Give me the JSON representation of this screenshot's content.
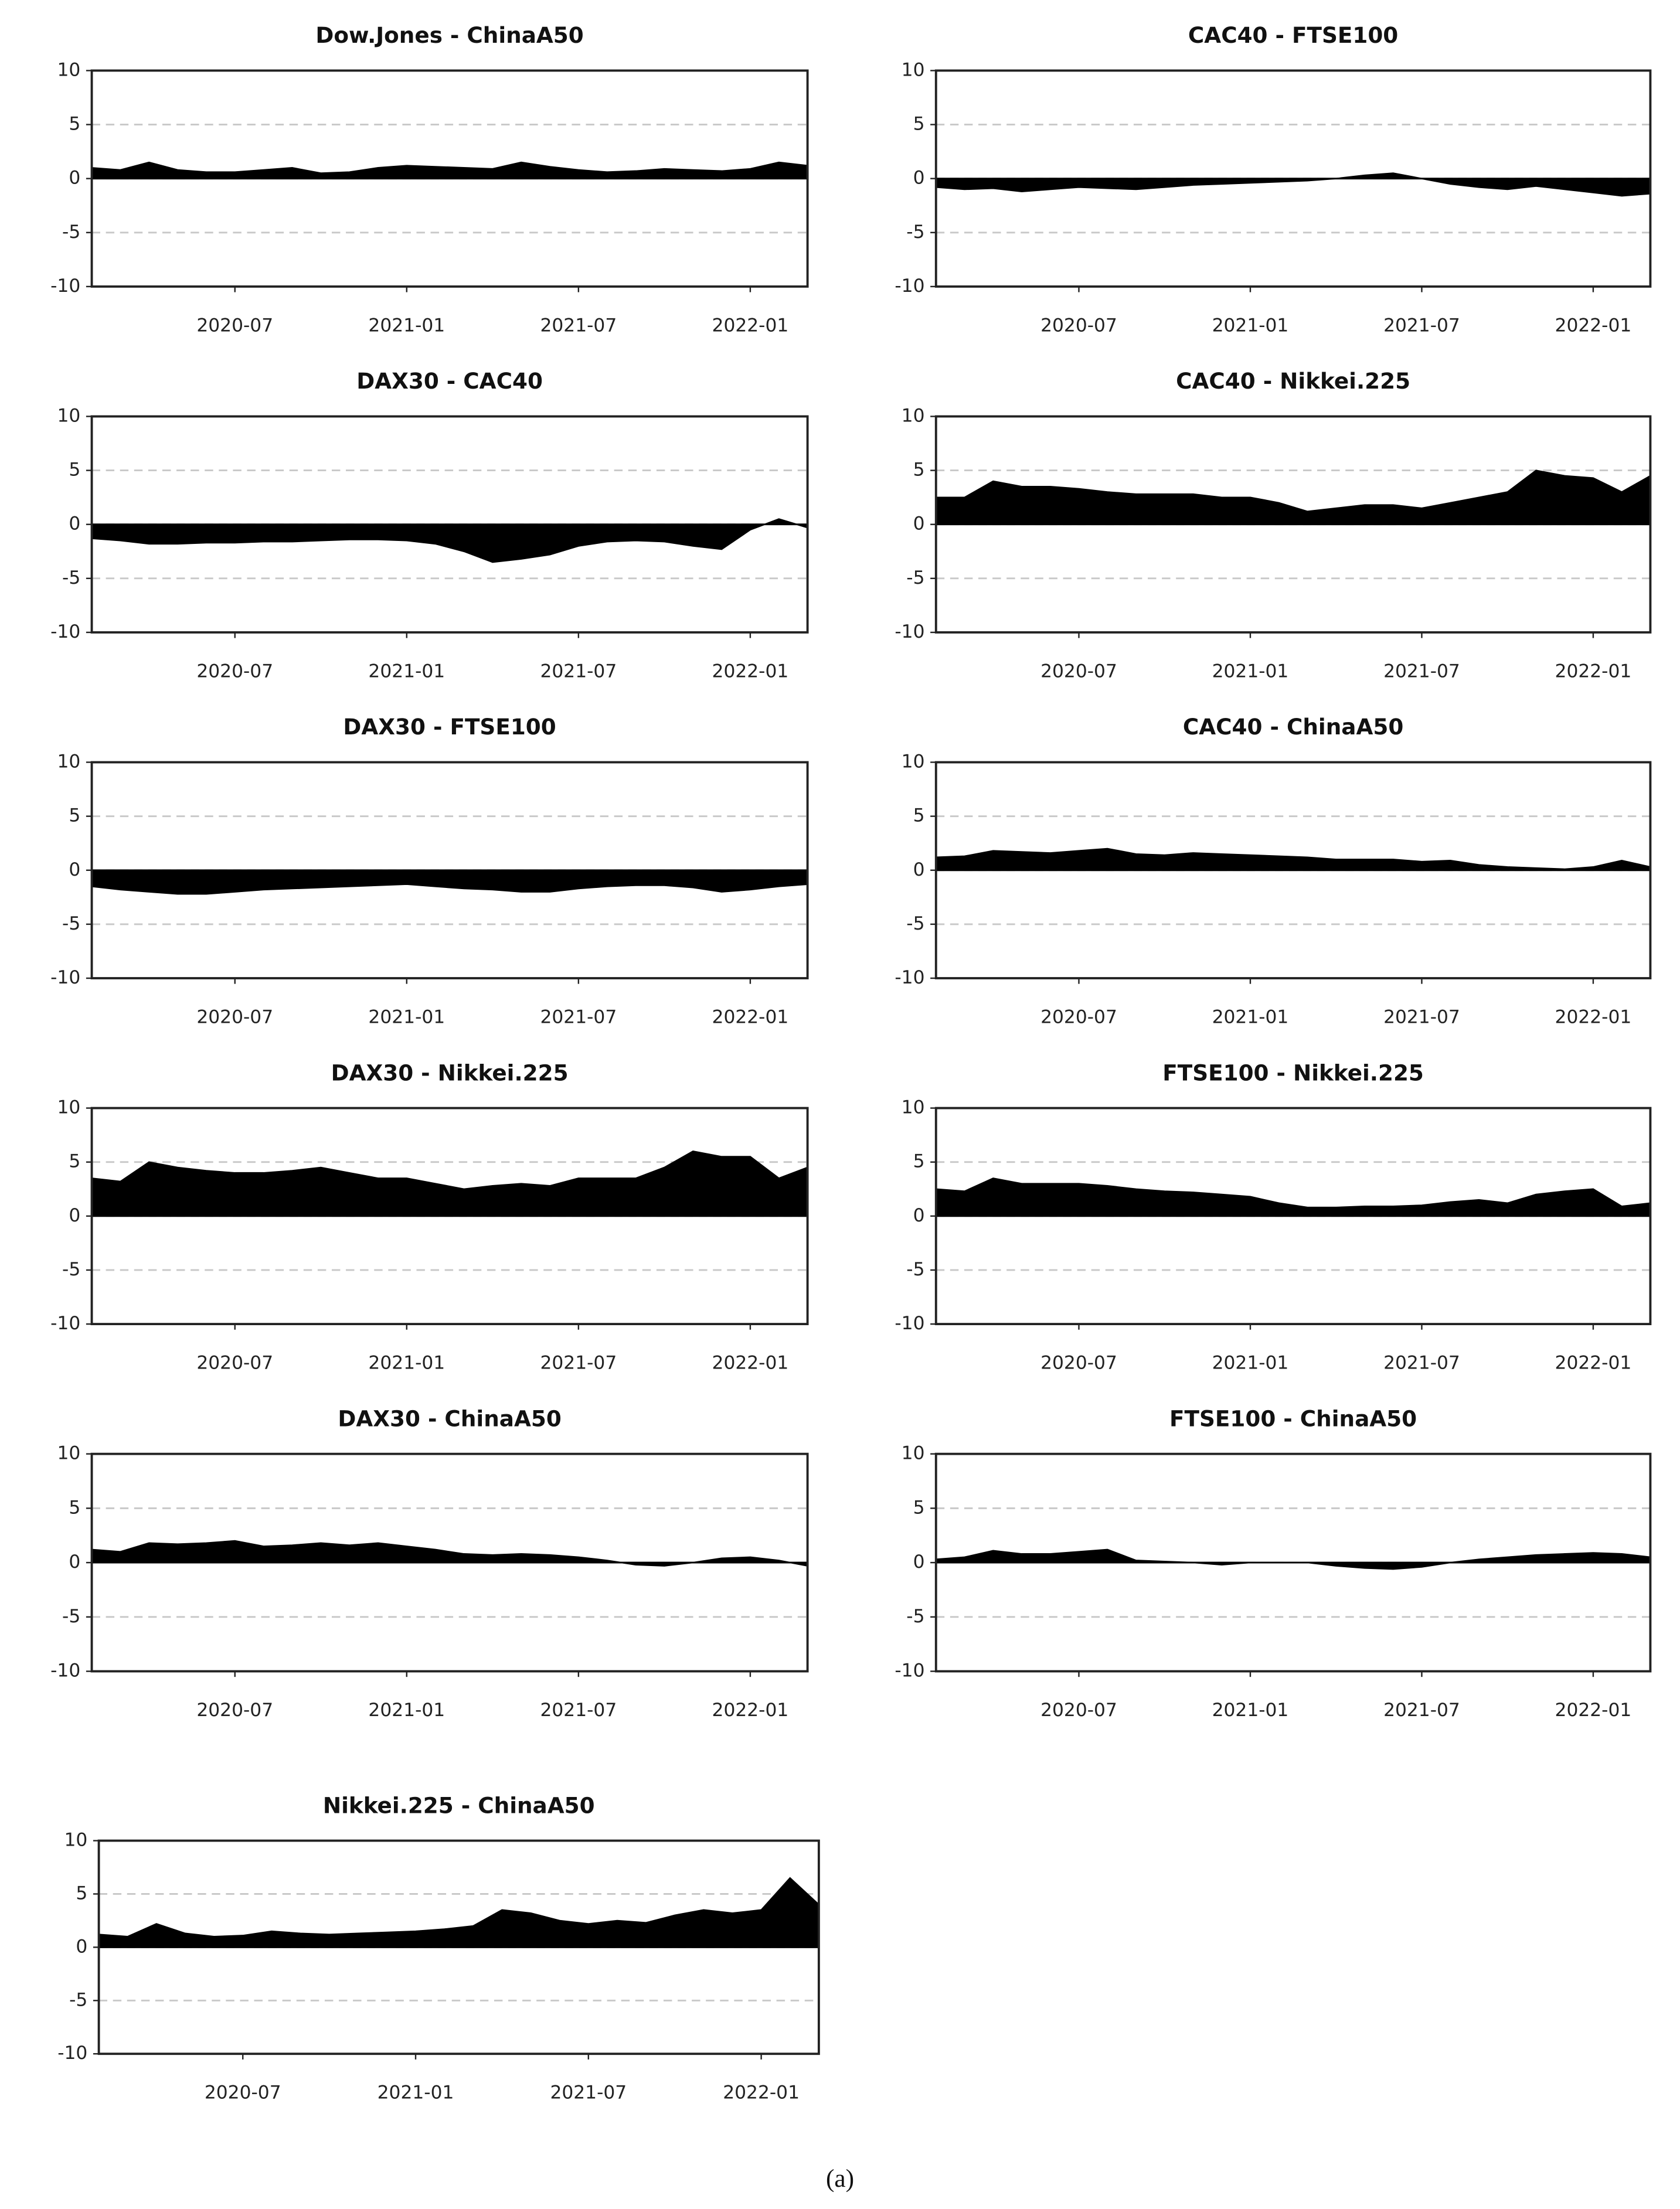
{
  "chart_data": [
    {
      "type": "area",
      "title": "Dow.Jones - ChinaA50",
      "color": "#000000",
      "grid": true,
      "x": [
        "2020-02",
        "2020-03",
        "2020-04",
        "2020-05",
        "2020-06",
        "2020-07",
        "2020-08",
        "2020-09",
        "2020-10",
        "2020-11",
        "2020-12",
        "2021-01",
        "2021-02",
        "2021-03",
        "2021-04",
        "2021-05",
        "2021-06",
        "2021-07",
        "2021-08",
        "2021-09",
        "2021-10",
        "2021-11",
        "2021-12",
        "2022-01",
        "2022-02",
        "2022-03"
      ],
      "values": [
        1,
        0.8,
        1.5,
        0.8,
        0.6,
        0.6,
        0.8,
        1,
        0.5,
        0.6,
        1,
        1.2,
        1.1,
        1,
        0.9,
        1.5,
        1.1,
        0.8,
        0.6,
        0.7,
        0.9,
        0.8,
        0.7,
        0.9,
        1.5,
        1.2
      ],
      "xlim": [
        "2020-02",
        "2022-03"
      ],
      "xticks": [
        "2020-07",
        "2021-01",
        "2021-07",
        "2022-01"
      ],
      "ylim": [
        -10,
        10
      ],
      "yticks": [
        -10,
        -5,
        0,
        5,
        10
      ]
    },
    {
      "type": "area",
      "title": "CAC40 - FTSE100",
      "color": "#000000",
      "grid": true,
      "x": [
        "2020-02",
        "2020-03",
        "2020-04",
        "2020-05",
        "2020-06",
        "2020-07",
        "2020-08",
        "2020-09",
        "2020-10",
        "2020-11",
        "2020-12",
        "2021-01",
        "2021-02",
        "2021-03",
        "2021-04",
        "2021-05",
        "2021-06",
        "2021-07",
        "2021-08",
        "2021-09",
        "2021-10",
        "2021-11",
        "2021-12",
        "2022-01",
        "2022-02",
        "2022-03"
      ],
      "values": [
        -0.8,
        -1,
        -0.9,
        -1.2,
        -1,
        -0.8,
        -0.9,
        -1,
        -0.8,
        -0.6,
        -0.5,
        -0.4,
        -0.3,
        -0.2,
        0,
        0.3,
        0.5,
        0,
        -0.5,
        -0.8,
        -1,
        -0.7,
        -1,
        -1.3,
        -1.6,
        -1.4
      ],
      "xlim": [
        "2020-02",
        "2022-03"
      ],
      "xticks": [
        "2020-07",
        "2021-01",
        "2021-07",
        "2022-01"
      ],
      "ylim": [
        -10,
        10
      ],
      "yticks": [
        -10,
        -5,
        0,
        5,
        10
      ]
    },
    {
      "type": "area",
      "title": "DAX30 - CAC40",
      "color": "#000000",
      "grid": true,
      "x": [
        "2020-02",
        "2020-03",
        "2020-04",
        "2020-05",
        "2020-06",
        "2020-07",
        "2020-08",
        "2020-09",
        "2020-10",
        "2020-11",
        "2020-12",
        "2021-01",
        "2021-02",
        "2021-03",
        "2021-04",
        "2021-05",
        "2021-06",
        "2021-07",
        "2021-08",
        "2021-09",
        "2021-10",
        "2021-11",
        "2021-12",
        "2022-01",
        "2022-02",
        "2022-03"
      ],
      "values": [
        -1.3,
        -1.5,
        -1.8,
        -1.8,
        -1.7,
        -1.7,
        -1.6,
        -1.6,
        -1.5,
        -1.4,
        -1.4,
        -1.5,
        -1.8,
        -2.5,
        -3.5,
        -3.2,
        -2.8,
        -2,
        -1.6,
        -1.5,
        -1.6,
        -2,
        -2.3,
        -0.5,
        0.5,
        -0.3
      ],
      "xlim": [
        "2020-02",
        "2022-03"
      ],
      "xticks": [
        "2020-07",
        "2021-01",
        "2021-07",
        "2022-01"
      ],
      "ylim": [
        -10,
        10
      ],
      "yticks": [
        -10,
        -5,
        0,
        5,
        10
      ]
    },
    {
      "type": "area",
      "title": "CAC40 - Nikkei.225",
      "color": "#000000",
      "grid": true,
      "x": [
        "2020-02",
        "2020-03",
        "2020-04",
        "2020-05",
        "2020-06",
        "2020-07",
        "2020-08",
        "2020-09",
        "2020-10",
        "2020-11",
        "2020-12",
        "2021-01",
        "2021-02",
        "2021-03",
        "2021-04",
        "2021-05",
        "2021-06",
        "2021-07",
        "2021-08",
        "2021-09",
        "2021-10",
        "2021-11",
        "2021-12",
        "2022-01",
        "2022-02",
        "2022-03"
      ],
      "values": [
        2.5,
        2.5,
        4,
        3.5,
        3.5,
        3.3,
        3,
        2.8,
        2.8,
        2.8,
        2.5,
        2.5,
        2,
        1.2,
        1.5,
        1.8,
        1.8,
        1.5,
        2,
        2.5,
        3,
        5,
        4.5,
        4.3,
        3,
        4.5
      ],
      "xlim": [
        "2020-02",
        "2022-03"
      ],
      "xticks": [
        "2020-07",
        "2021-01",
        "2021-07",
        "2022-01"
      ],
      "ylim": [
        -10,
        10
      ],
      "yticks": [
        -10,
        -5,
        0,
        5,
        10
      ]
    },
    {
      "type": "area",
      "title": "DAX30 - FTSE100",
      "color": "#000000",
      "grid": true,
      "x": [
        "2020-02",
        "2020-03",
        "2020-04",
        "2020-05",
        "2020-06",
        "2020-07",
        "2020-08",
        "2020-09",
        "2020-10",
        "2020-11",
        "2020-12",
        "2021-01",
        "2021-02",
        "2021-03",
        "2021-04",
        "2021-05",
        "2021-06",
        "2021-07",
        "2021-08",
        "2021-09",
        "2021-10",
        "2021-11",
        "2021-12",
        "2022-01",
        "2022-02",
        "2022-03"
      ],
      "values": [
        -1.5,
        -1.8,
        -2,
        -2.2,
        -2.2,
        -2,
        -1.8,
        -1.7,
        -1.6,
        -1.5,
        -1.4,
        -1.3,
        -1.5,
        -1.7,
        -1.8,
        -2,
        -2,
        -1.7,
        -1.5,
        -1.4,
        -1.4,
        -1.6,
        -2,
        -1.8,
        -1.5,
        -1.3
      ],
      "xlim": [
        "2020-02",
        "2022-03"
      ],
      "xticks": [
        "2020-07",
        "2021-01",
        "2021-07",
        "2022-01"
      ],
      "ylim": [
        -10,
        10
      ],
      "yticks": [
        -10,
        -5,
        0,
        5,
        10
      ]
    },
    {
      "type": "area",
      "title": "CAC40 - ChinaA50",
      "color": "#000000",
      "grid": true,
      "x": [
        "2020-02",
        "2020-03",
        "2020-04",
        "2020-05",
        "2020-06",
        "2020-07",
        "2020-08",
        "2020-09",
        "2020-10",
        "2020-11",
        "2020-12",
        "2021-01",
        "2021-02",
        "2021-03",
        "2021-04",
        "2021-05",
        "2021-06",
        "2021-07",
        "2021-08",
        "2021-09",
        "2021-10",
        "2021-11",
        "2021-12",
        "2022-01",
        "2022-02",
        "2022-03"
      ],
      "values": [
        1.2,
        1.3,
        1.8,
        1.7,
        1.6,
        1.8,
        2,
        1.5,
        1.4,
        1.6,
        1.5,
        1.4,
        1.3,
        1.2,
        1,
        1,
        1,
        0.8,
        0.9,
        0.5,
        0.3,
        0.2,
        0.1,
        0.3,
        0.9,
        0.3
      ],
      "xlim": [
        "2020-02",
        "2022-03"
      ],
      "xticks": [
        "2020-07",
        "2021-01",
        "2021-07",
        "2022-01"
      ],
      "ylim": [
        -10,
        10
      ],
      "yticks": [
        -10,
        -5,
        0,
        5,
        10
      ]
    },
    {
      "type": "area",
      "title": "DAX30 - Nikkei.225",
      "color": "#000000",
      "grid": true,
      "x": [
        "2020-02",
        "2020-03",
        "2020-04",
        "2020-05",
        "2020-06",
        "2020-07",
        "2020-08",
        "2020-09",
        "2020-10",
        "2020-11",
        "2020-12",
        "2021-01",
        "2021-02",
        "2021-03",
        "2021-04",
        "2021-05",
        "2021-06",
        "2021-07",
        "2021-08",
        "2021-09",
        "2021-10",
        "2021-11",
        "2021-12",
        "2022-01",
        "2022-02",
        "2022-03"
      ],
      "values": [
        3.5,
        3.2,
        5,
        4.5,
        4.2,
        4,
        4,
        4.2,
        4.5,
        4,
        3.5,
        3.5,
        3,
        2.5,
        2.8,
        3,
        2.8,
        3.5,
        3.5,
        3.5,
        4.5,
        6,
        5.5,
        5.5,
        3.5,
        4.5
      ],
      "xlim": [
        "2020-02",
        "2022-03"
      ],
      "xticks": [
        "2020-07",
        "2021-01",
        "2021-07",
        "2022-01"
      ],
      "ylim": [
        -10,
        10
      ],
      "yticks": [
        -10,
        -5,
        0,
        5,
        10
      ]
    },
    {
      "type": "area",
      "title": "FTSE100 - Nikkei.225",
      "color": "#000000",
      "grid": true,
      "x": [
        "2020-02",
        "2020-03",
        "2020-04",
        "2020-05",
        "2020-06",
        "2020-07",
        "2020-08",
        "2020-09",
        "2020-10",
        "2020-11",
        "2020-12",
        "2021-01",
        "2021-02",
        "2021-03",
        "2021-04",
        "2021-05",
        "2021-06",
        "2021-07",
        "2021-08",
        "2021-09",
        "2021-10",
        "2021-11",
        "2021-12",
        "2022-01",
        "2022-02",
        "2022-03"
      ],
      "values": [
        2.5,
        2.3,
        3.5,
        3,
        3,
        3,
        2.8,
        2.5,
        2.3,
        2.2,
        2,
        1.8,
        1.2,
        0.8,
        0.8,
        0.9,
        0.9,
        1,
        1.3,
        1.5,
        1.2,
        2,
        2.3,
        2.5,
        0.9,
        1.2
      ],
      "xlim": [
        "2020-02",
        "2022-03"
      ],
      "xticks": [
        "2020-07",
        "2021-01",
        "2021-07",
        "2022-01"
      ],
      "ylim": [
        -10,
        10
      ],
      "yticks": [
        -10,
        -5,
        0,
        5,
        10
      ]
    },
    {
      "type": "area",
      "title": "DAX30 - ChinaA50",
      "color": "#000000",
      "grid": true,
      "x": [
        "2020-02",
        "2020-03",
        "2020-04",
        "2020-05",
        "2020-06",
        "2020-07",
        "2020-08",
        "2020-09",
        "2020-10",
        "2020-11",
        "2020-12",
        "2021-01",
        "2021-02",
        "2021-03",
        "2021-04",
        "2021-05",
        "2021-06",
        "2021-07",
        "2021-08",
        "2021-09",
        "2021-10",
        "2021-11",
        "2021-12",
        "2022-01",
        "2022-02",
        "2022-03"
      ],
      "values": [
        1.2,
        1,
        1.8,
        1.7,
        1.8,
        2,
        1.5,
        1.6,
        1.8,
        1.6,
        1.8,
        1.5,
        1.2,
        0.8,
        0.7,
        0.8,
        0.7,
        0.5,
        0.2,
        -0.2,
        -0.3,
        0,
        0.4,
        0.5,
        0.2,
        -0.3
      ],
      "xlim": [
        "2020-02",
        "2022-03"
      ],
      "xticks": [
        "2020-07",
        "2021-01",
        "2021-07",
        "2022-01"
      ],
      "ylim": [
        -10,
        10
      ],
      "yticks": [
        -10,
        -5,
        0,
        5,
        10
      ]
    },
    {
      "type": "area",
      "title": "FTSE100 - ChinaA50",
      "color": "#000000",
      "grid": true,
      "x": [
        "2020-02",
        "2020-03",
        "2020-04",
        "2020-05",
        "2020-06",
        "2020-07",
        "2020-08",
        "2020-09",
        "2020-10",
        "2020-11",
        "2020-12",
        "2021-01",
        "2021-02",
        "2021-03",
        "2021-04",
        "2021-05",
        "2021-06",
        "2021-07",
        "2021-08",
        "2021-09",
        "2021-10",
        "2021-11",
        "2021-12",
        "2022-01",
        "2022-02",
        "2022-03"
      ],
      "values": [
        0.3,
        0.5,
        1.1,
        0.8,
        0.8,
        1,
        1.2,
        0.2,
        0.1,
        0,
        -0.2,
        0,
        0,
        0,
        -0.3,
        -0.5,
        -0.6,
        -0.4,
        0,
        0.3,
        0.5,
        0.7,
        0.8,
        0.9,
        0.8,
        0.5
      ],
      "xlim": [
        "2020-02",
        "2022-03"
      ],
      "xticks": [
        "2020-07",
        "2021-01",
        "2021-07",
        "2022-01"
      ],
      "ylim": [
        -10,
        10
      ],
      "yticks": [
        -10,
        -5,
        0,
        5,
        10
      ]
    },
    {
      "type": "area",
      "title": "Nikkei.225 - ChinaA50",
      "color": "#000000",
      "grid": true,
      "x": [
        "2020-02",
        "2020-03",
        "2020-04",
        "2020-05",
        "2020-06",
        "2020-07",
        "2020-08",
        "2020-09",
        "2020-10",
        "2020-11",
        "2020-12",
        "2021-01",
        "2021-02",
        "2021-03",
        "2021-04",
        "2021-05",
        "2021-06",
        "2021-07",
        "2021-08",
        "2021-09",
        "2021-10",
        "2021-11",
        "2021-12",
        "2022-01",
        "2022-02",
        "2022-03"
      ],
      "values": [
        1.2,
        1,
        2.2,
        1.3,
        1,
        1.1,
        1.5,
        1.3,
        1.2,
        1.3,
        1.4,
        1.5,
        1.7,
        2,
        3.5,
        3.2,
        2.5,
        2.2,
        2.5,
        2.3,
        3,
        3.5,
        3.2,
        3.5,
        6.5,
        4
      ],
      "xlim": [
        "2020-02",
        "2022-03"
      ],
      "xticks": [
        "2020-07",
        "2021-01",
        "2021-07",
        "2022-01"
      ],
      "ylim": [
        -10,
        10
      ],
      "yticks": [
        -10,
        -5,
        0,
        5,
        10
      ]
    }
  ],
  "caption": "(a)"
}
